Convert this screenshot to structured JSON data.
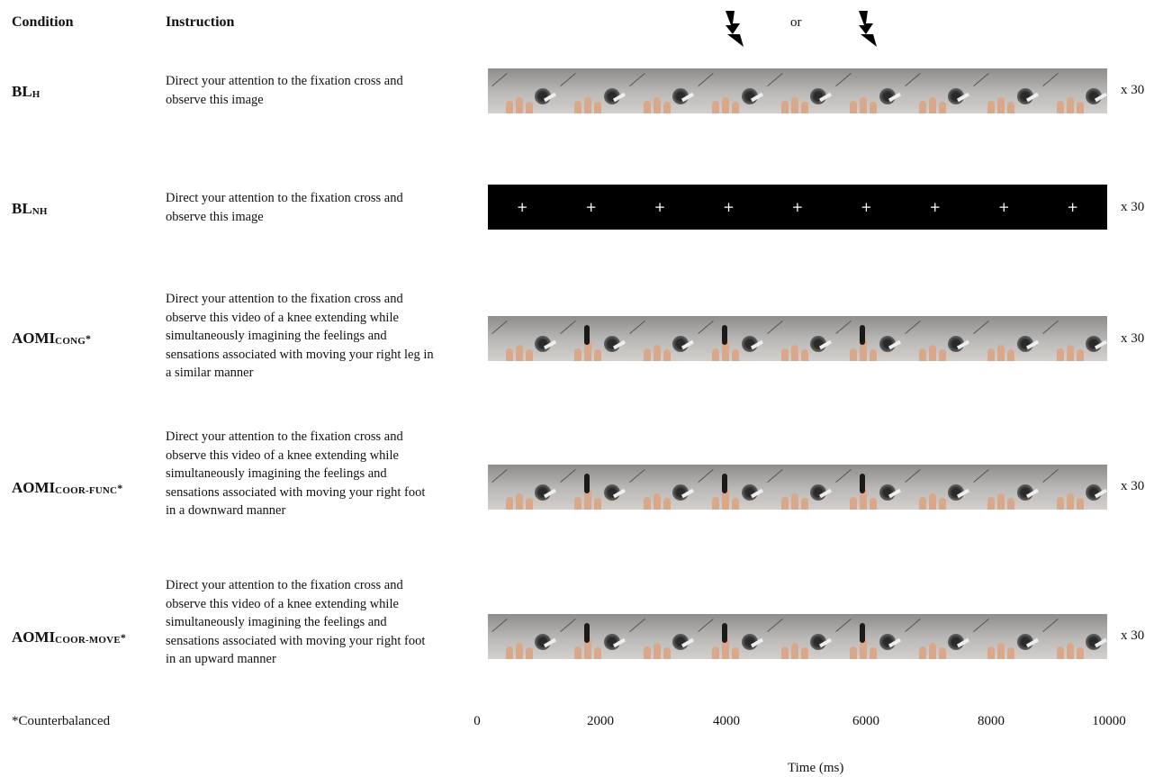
{
  "headers": {
    "condition": "Condition",
    "instruction": "Instruction"
  },
  "stimulation_marker": {
    "or_label": "or",
    "icon": "lightning-bolt-icon"
  },
  "conditions": [
    {
      "base": "BL",
      "sub": "H",
      "star": "",
      "instruction": "Direct your attention to the fixation cross and observe this image",
      "stimulus": "static-image",
      "repeat": "x 30"
    },
    {
      "base": "BL",
      "sub": "NH",
      "star": "",
      "instruction": "Direct your attention to the fixation cross and observe this image",
      "stimulus": "fixation-cross",
      "repeat": "x 30"
    },
    {
      "base": "AOMI",
      "sub": "CONG",
      "star": "*",
      "instruction": "Direct your attention to the fixation cross and observe this video of a knee extending while simultaneously imagining the feelings and sensations associated with moving your right leg in a similar manner",
      "stimulus": "video",
      "repeat": "x 30"
    },
    {
      "base": "AOMI",
      "sub": "COOR-FUNC",
      "star": "*",
      "instruction": "Direct your attention to the fixation cross and observe this video of a knee extending while simultaneously imagining the feelings and sensations associated with moving your right foot in a downward manner",
      "stimulus": "video",
      "repeat": "x 30"
    },
    {
      "base": "AOMI",
      "sub": "COOR-MOVE",
      "star": "*",
      "instruction": "Direct your attention to the fixation cross and observe this video of a knee extending while simultaneously imagining the feelings and sensations associated with moving your right foot in an upward manner",
      "stimulus": "video",
      "repeat": "x 30"
    }
  ],
  "fixation_symbol": "+",
  "footnote": "*Counterbalanced",
  "time_axis": {
    "ticks": [
      "0",
      "2000",
      "4000",
      "6000",
      "8000",
      "10000"
    ],
    "label": "Time (ms)"
  }
}
